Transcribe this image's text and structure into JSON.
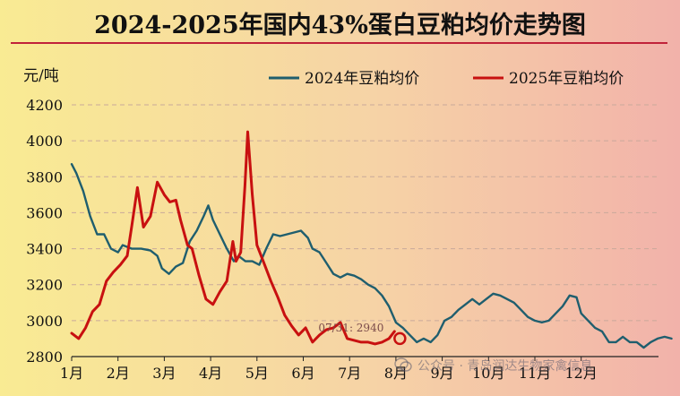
{
  "title": "2024-2025年国内43%蛋白豆粕均价走势图",
  "watermark": "公众号 · 青岛润达生物家禽信息",
  "chart_data": {
    "type": "line",
    "title": "2024-2025年国内43%蛋白豆粕均价走势图",
    "ylabel": "元/吨",
    "xlabel": "",
    "ylim": [
      2800,
      4200
    ],
    "yticks": [
      2800,
      3000,
      3200,
      3400,
      3600,
      3800,
      4000,
      4200
    ],
    "categories": [
      "1月",
      "2月",
      "3月",
      "4月",
      "5月",
      "6月",
      "7月",
      "8月",
      "9月",
      "10月",
      "11月",
      "12月"
    ],
    "grid": true,
    "legend_position": "top-right",
    "annotation": {
      "text": "07/31: 2940",
      "month": 7.97,
      "value": 2940
    },
    "series": [
      {
        "name": "2024年豆粕均价",
        "color": "#1f5e6e",
        "points": [
          [
            1.0,
            3870
          ],
          [
            1.1,
            3820
          ],
          [
            1.25,
            3720
          ],
          [
            1.4,
            3580
          ],
          [
            1.55,
            3480
          ],
          [
            1.7,
            3480
          ],
          [
            1.85,
            3400
          ],
          [
            2.0,
            3380
          ],
          [
            2.1,
            3420
          ],
          [
            2.3,
            3400
          ],
          [
            2.5,
            3400
          ],
          [
            2.7,
            3390
          ],
          [
            2.85,
            3360
          ],
          [
            2.95,
            3290
          ],
          [
            3.1,
            3260
          ],
          [
            3.25,
            3300
          ],
          [
            3.4,
            3320
          ],
          [
            3.55,
            3440
          ],
          [
            3.7,
            3500
          ],
          [
            3.85,
            3580
          ],
          [
            3.95,
            3640
          ],
          [
            4.05,
            3560
          ],
          [
            4.2,
            3480
          ],
          [
            4.35,
            3400
          ],
          [
            4.5,
            3330
          ],
          [
            4.6,
            3360
          ],
          [
            4.75,
            3330
          ],
          [
            4.9,
            3330
          ],
          [
            5.05,
            3310
          ],
          [
            5.2,
            3400
          ],
          [
            5.35,
            3480
          ],
          [
            5.5,
            3470
          ],
          [
            5.65,
            3480
          ],
          [
            5.8,
            3490
          ],
          [
            5.95,
            3500
          ],
          [
            6.1,
            3460
          ],
          [
            6.2,
            3400
          ],
          [
            6.35,
            3380
          ],
          [
            6.5,
            3320
          ],
          [
            6.65,
            3260
          ],
          [
            6.8,
            3240
          ],
          [
            6.95,
            3260
          ],
          [
            7.1,
            3250
          ],
          [
            7.25,
            3230
          ],
          [
            7.4,
            3200
          ],
          [
            7.55,
            3180
          ],
          [
            7.7,
            3140
          ],
          [
            7.85,
            3080
          ],
          [
            8.0,
            2990
          ],
          [
            8.15,
            2960
          ],
          [
            8.3,
            2920
          ],
          [
            8.45,
            2880
          ],
          [
            8.6,
            2900
          ],
          [
            8.75,
            2880
          ],
          [
            8.9,
            2920
          ],
          [
            9.05,
            3000
          ],
          [
            9.2,
            3020
          ],
          [
            9.35,
            3060
          ],
          [
            9.5,
            3090
          ],
          [
            9.65,
            3120
          ],
          [
            9.8,
            3090
          ],
          [
            9.95,
            3120
          ],
          [
            10.1,
            3150
          ],
          [
            10.25,
            3140
          ],
          [
            10.4,
            3120
          ],
          [
            10.55,
            3100
          ],
          [
            10.7,
            3060
          ],
          [
            10.85,
            3020
          ],
          [
            11.0,
            3000
          ],
          [
            11.15,
            2990
          ],
          [
            11.3,
            3000
          ],
          [
            11.45,
            3040
          ],
          [
            11.6,
            3080
          ],
          [
            11.75,
            3140
          ],
          [
            11.9,
            3130
          ],
          [
            12.0,
            3040
          ],
          [
            12.15,
            3000
          ],
          [
            12.3,
            2960
          ],
          [
            12.45,
            2940
          ],
          [
            12.6,
            2880
          ],
          [
            12.75,
            2880
          ],
          [
            12.9,
            2910
          ],
          [
            13.05,
            2880
          ],
          [
            13.2,
            2880
          ],
          [
            13.35,
            2850
          ],
          [
            13.5,
            2880
          ],
          [
            13.65,
            2900
          ],
          [
            13.8,
            2910
          ],
          [
            13.95,
            2900
          ]
        ]
      },
      {
        "name": "2025年豆粕均价",
        "color": "#c81010",
        "points": [
          [
            1.0,
            2930
          ],
          [
            1.15,
            2900
          ],
          [
            1.3,
            2960
          ],
          [
            1.45,
            3050
          ],
          [
            1.6,
            3090
          ],
          [
            1.75,
            3220
          ],
          [
            1.9,
            3270
          ],
          [
            2.05,
            3310
          ],
          [
            2.2,
            3360
          ],
          [
            2.3,
            3530
          ],
          [
            2.42,
            3740
          ],
          [
            2.55,
            3520
          ],
          [
            2.7,
            3580
          ],
          [
            2.85,
            3770
          ],
          [
            3.0,
            3700
          ],
          [
            3.12,
            3660
          ],
          [
            3.25,
            3670
          ],
          [
            3.35,
            3560
          ],
          [
            3.5,
            3420
          ],
          [
            3.6,
            3400
          ],
          [
            3.75,
            3250
          ],
          [
            3.9,
            3120
          ],
          [
            4.05,
            3090
          ],
          [
            4.2,
            3160
          ],
          [
            4.35,
            3220
          ],
          [
            4.48,
            3440
          ],
          [
            4.55,
            3330
          ],
          [
            4.65,
            3380
          ],
          [
            4.74,
            3750
          ],
          [
            4.8,
            4050
          ],
          [
            4.9,
            3700
          ],
          [
            5.0,
            3420
          ],
          [
            5.15,
            3320
          ],
          [
            5.3,
            3220
          ],
          [
            5.45,
            3130
          ],
          [
            5.6,
            3030
          ],
          [
            5.75,
            2970
          ],
          [
            5.9,
            2920
          ],
          [
            6.05,
            2960
          ],
          [
            6.2,
            2880
          ],
          [
            6.35,
            2920
          ],
          [
            6.5,
            2950
          ],
          [
            6.65,
            2960
          ],
          [
            6.8,
            2990
          ],
          [
            6.95,
            2900
          ],
          [
            7.1,
            2890
          ],
          [
            7.25,
            2880
          ],
          [
            7.4,
            2880
          ],
          [
            7.55,
            2870
          ],
          [
            7.7,
            2880
          ],
          [
            7.85,
            2900
          ],
          [
            7.97,
            2940
          ]
        ]
      }
    ]
  }
}
